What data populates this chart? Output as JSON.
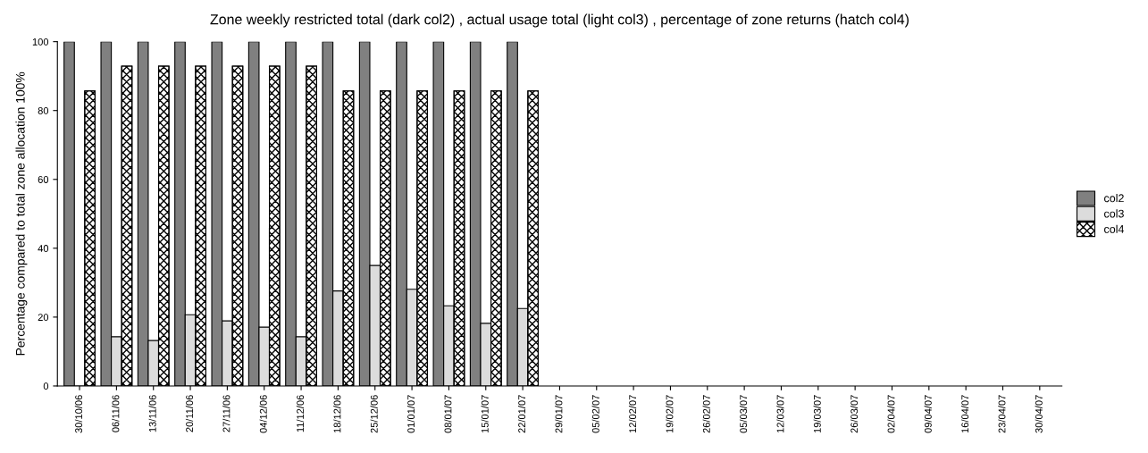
{
  "chart_data": {
    "type": "bar",
    "title": "Zone weekly restricted total (dark col2) , actual usage total (light col3) , percentage of zone returns (hatch col4)",
    "ylabel": "Percentage compared to total zone allocation 100%",
    "categories": [
      "30/10/06",
      "06/11/06",
      "13/11/06",
      "20/11/06",
      "27/11/06",
      "04/12/06",
      "11/12/06",
      "18/12/06",
      "25/12/06",
      "01/01/07",
      "08/01/07",
      "15/01/07",
      "22/01/07",
      "29/01/07",
      "05/02/07",
      "12/02/07",
      "19/02/07",
      "26/02/07",
      "05/03/07",
      "12/03/07",
      "19/03/07",
      "26/03/07",
      "02/04/07",
      "09/04/07",
      "16/04/07",
      "23/04/07",
      "30/04/07"
    ],
    "series": [
      {
        "name": "col2",
        "color": "#808080",
        "values": [
          100,
          100,
          100,
          100,
          100,
          100,
          100,
          100,
          100,
          100,
          100,
          100,
          100,
          null,
          null,
          null,
          null,
          null,
          null,
          null,
          null,
          null,
          null,
          null,
          null,
          null,
          null
        ]
      },
      {
        "name": "col3",
        "color": "#dcdcdc",
        "values": [
          0,
          14.3,
          13.2,
          20.7,
          18.9,
          17.1,
          14.3,
          27.6,
          35,
          28.1,
          23.3,
          18.2,
          22.5,
          null,
          null,
          null,
          null,
          null,
          null,
          null,
          null,
          null,
          null,
          null,
          null,
          null,
          null
        ]
      },
      {
        "name": "col4",
        "color": "#000000",
        "values": [
          85.7,
          92.9,
          92.9,
          92.9,
          92.9,
          92.9,
          92.9,
          85.7,
          85.7,
          85.7,
          85.7,
          85.7,
          85.7,
          null,
          null,
          null,
          null,
          null,
          null,
          null,
          null,
          null,
          null,
          null,
          null,
          null,
          null
        ]
      }
    ],
    "ylim": [
      0,
      100
    ],
    "yticks": [
      0,
      20,
      40,
      60,
      80,
      100
    ],
    "grid": false,
    "legend": "right"
  }
}
